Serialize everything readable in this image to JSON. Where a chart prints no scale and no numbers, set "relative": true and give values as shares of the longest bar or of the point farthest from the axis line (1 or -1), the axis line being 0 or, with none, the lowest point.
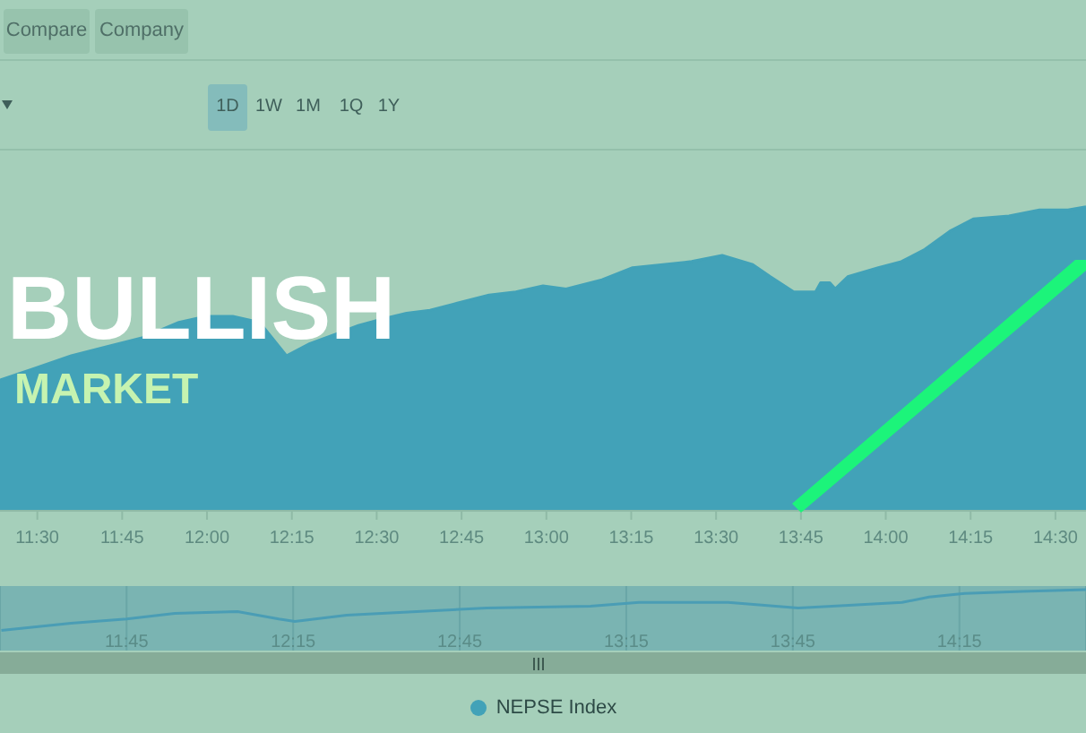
{
  "chart_data": [
    {
      "type": "area",
      "x": [
        11.39,
        11.495,
        11.6,
        11.706,
        11.811,
        11.917,
        11.997,
        12.076,
        12.155,
        12.234,
        12.303,
        12.377,
        12.446,
        12.514,
        12.588,
        12.657,
        12.726,
        12.831,
        12.91,
        12.99,
        13.058,
        13.164,
        13.254,
        13.344,
        13.428,
        13.518,
        13.608,
        13.66,
        13.729,
        13.793,
        13.808,
        13.835,
        13.851,
        13.888,
        13.978,
        14.046,
        14.115,
        14.189,
        14.258,
        14.363,
        14.453,
        14.537,
        14.59
      ],
      "series": [
        {
          "name": "NEPSE Index",
          "color": "#42a2b8",
          "values": [
            0.43,
            0.47,
            0.51,
            0.54,
            0.57,
            0.62,
            0.64,
            0.64,
            0.62,
            0.51,
            0.55,
            0.58,
            0.61,
            0.63,
            0.65,
            0.66,
            0.68,
            0.71,
            0.72,
            0.74,
            0.73,
            0.76,
            0.8,
            0.81,
            0.82,
            0.84,
            0.81,
            0.77,
            0.72,
            0.72,
            0.75,
            0.75,
            0.73,
            0.77,
            0.8,
            0.82,
            0.86,
            0.92,
            0.96,
            0.97,
            0.99,
            0.99,
            1
          ]
        }
      ],
      "relative": true,
      "xlim": [
        11.39,
        14.59
      ],
      "xticks": [
        {
          "value": 11.5,
          "label": "11:30"
        },
        {
          "value": 11.75,
          "label": "11:45"
        },
        {
          "value": 12,
          "label": "12:00"
        },
        {
          "value": 12.25,
          "label": "12:15"
        },
        {
          "value": 12.5,
          "label": "12:30"
        },
        {
          "value": 12.75,
          "label": "12:45"
        },
        {
          "value": 13,
          "label": "13:00"
        },
        {
          "value": 13.25,
          "label": "13:15"
        },
        {
          "value": 13.5,
          "label": "13:30"
        },
        {
          "value": 13.75,
          "label": "13:45"
        },
        {
          "value": 14,
          "label": "14:00"
        },
        {
          "value": 14.25,
          "label": "14:15"
        },
        {
          "value": 14.5,
          "label": "14:30"
        }
      ],
      "legend": "bottom",
      "annotations": [
        "Compare",
        "Company",
        "1D",
        "1W",
        "1M",
        "1Q",
        "1Y",
        "BULLISH",
        "MARKET"
      ]
    },
    {
      "type": "line",
      "x": [
        11.374,
        11.583,
        11.75,
        11.895,
        12.083,
        12.207,
        12.255,
        12.411,
        12.621,
        12.831,
        13.142,
        13.288,
        13.556,
        13.766,
        13.868,
        14.078,
        14.159,
        14.266,
        14.438,
        14.63
      ],
      "values": [
        0.33,
        0.45,
        0.52,
        0.61,
        0.64,
        0.52,
        0.48,
        0.58,
        0.64,
        0.7,
        0.73,
        0.79,
        0.79,
        0.7,
        0.73,
        0.79,
        0.88,
        0.94,
        0.97,
        1
      ],
      "color": "#4a9db5",
      "relative": true,
      "xlim": [
        11.37,
        14.63
      ],
      "xticks": [
        {
          "value": 11.75,
          "label": "11:45"
        },
        {
          "value": 12.25,
          "label": "12:15"
        },
        {
          "value": 12.75,
          "label": "12:45"
        },
        {
          "value": 13.25,
          "label": "13:15"
        },
        {
          "value": 13.75,
          "label": "13:45"
        },
        {
          "value": 14.25,
          "label": "14:15"
        }
      ],
      "grid": "x"
    }
  ]
}
